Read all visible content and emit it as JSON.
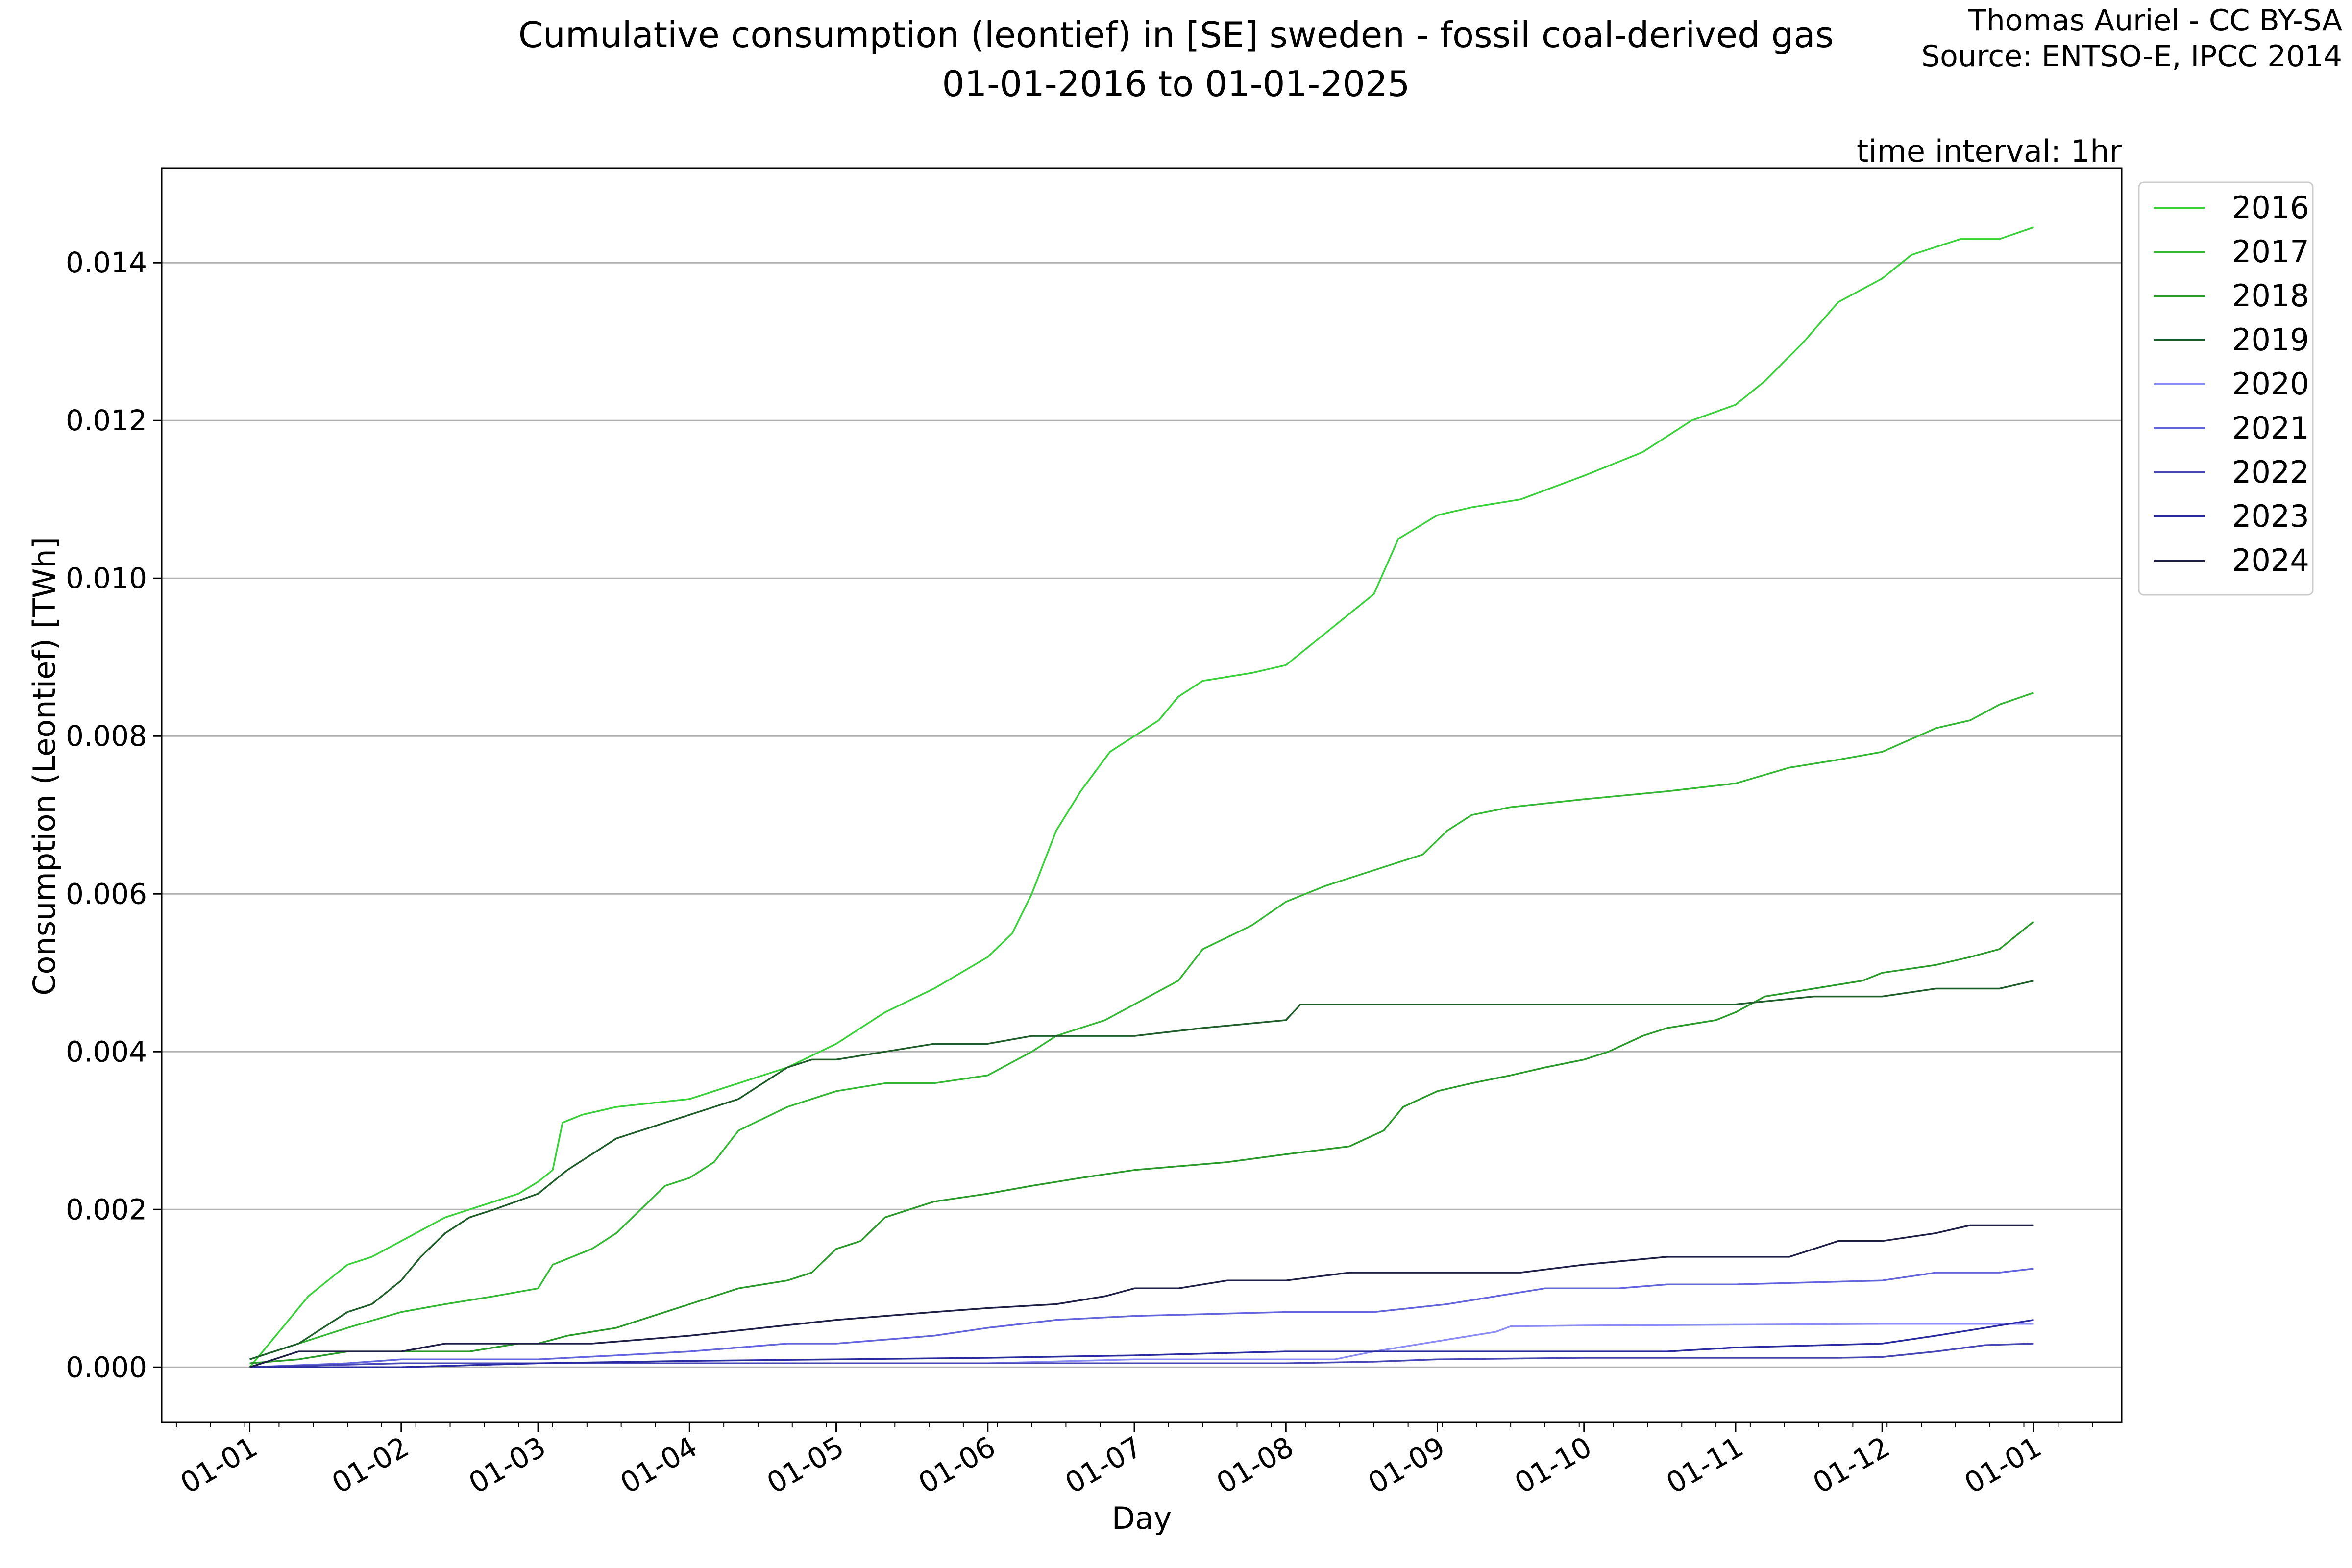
{
  "chart_data": {
    "type": "line",
    "title": "Cumulative consumption (leontief) in [SE] sweden - fossil coal-derived gas",
    "subtitle": "01-01-2016 to 01-01-2025",
    "credit_line1": "Thomas Auriel - CC BY-SA",
    "credit_line2": "Source: ENTSO-E, IPCC 2014",
    "annotation": "time interval: 1hr",
    "xlabel": "Day",
    "ylabel": "Consumption (Leontief) [TWh]",
    "x_ticks": [
      "01-01",
      "01-02",
      "01-03",
      "01-04",
      "01-05",
      "01-06",
      "01-07",
      "01-08",
      "01-09",
      "01-10",
      "01-11",
      "01-12",
      "01-01"
    ],
    "x_tick_days": [
      0,
      31,
      59,
      90,
      120,
      151,
      181,
      212,
      243,
      273,
      304,
      334,
      365
    ],
    "xlim": [
      -18,
      383
    ],
    "ylim": [
      -0.0007,
      0.0152
    ],
    "y_ticks": [
      0.0,
      0.002,
      0.004,
      0.006,
      0.008,
      0.01,
      0.012,
      0.014
    ],
    "y_tick_labels": [
      "0.000",
      "0.002",
      "0.004",
      "0.006",
      "0.008",
      "0.010",
      "0.012",
      "0.014"
    ],
    "grid": "horizontal",
    "legend_position": "upper-right-outside",
    "series": [
      {
        "name": "2016",
        "color": "#3ad13a",
        "points": [
          [
            0,
            0
          ],
          [
            4,
            0.0003
          ],
          [
            8,
            0.0006
          ],
          [
            12,
            0.0009
          ],
          [
            16,
            0.0011
          ],
          [
            20,
            0.0013
          ],
          [
            25,
            0.0014
          ],
          [
            31,
            0.0016
          ],
          [
            40,
            0.0019
          ],
          [
            45,
            0.002
          ],
          [
            50,
            0.0021
          ],
          [
            55,
            0.0022
          ],
          [
            59,
            0.00235
          ],
          [
            62,
            0.0025
          ],
          [
            64,
            0.0031
          ],
          [
            68,
            0.0032
          ],
          [
            75,
            0.0033
          ],
          [
            90,
            0.0034
          ],
          [
            100,
            0.0036
          ],
          [
            110,
            0.0038
          ],
          [
            120,
            0.0041
          ],
          [
            130,
            0.0045
          ],
          [
            140,
            0.0048
          ],
          [
            151,
            0.0052
          ],
          [
            156,
            0.0055
          ],
          [
            160,
            0.006
          ],
          [
            165,
            0.0068
          ],
          [
            170,
            0.0073
          ],
          [
            176,
            0.0078
          ],
          [
            181,
            0.008
          ],
          [
            186,
            0.0082
          ],
          [
            190,
            0.0085
          ],
          [
            195,
            0.0087
          ],
          [
            205,
            0.0088
          ],
          [
            212,
            0.0089
          ],
          [
            220,
            0.0093
          ],
          [
            230,
            0.0098
          ],
          [
            235,
            0.0105
          ],
          [
            243,
            0.0108
          ],
          [
            250,
            0.0109
          ],
          [
            260,
            0.011
          ],
          [
            273,
            0.0113
          ],
          [
            285,
            0.0116
          ],
          [
            295,
            0.012
          ],
          [
            304,
            0.0122
          ],
          [
            310,
            0.0125
          ],
          [
            318,
            0.013
          ],
          [
            325,
            0.0135
          ],
          [
            334,
            0.0138
          ],
          [
            340,
            0.0141
          ],
          [
            350,
            0.0143
          ],
          [
            358,
            0.0143
          ],
          [
            365,
            0.01445
          ]
        ]
      },
      {
        "name": "2017",
        "color": "#35b935",
        "points": [
          [
            0,
            0.0001
          ],
          [
            10,
            0.0003
          ],
          [
            20,
            0.0005
          ],
          [
            31,
            0.0007
          ],
          [
            40,
            0.0008
          ],
          [
            50,
            0.0009
          ],
          [
            59,
            0.001
          ],
          [
            62,
            0.0013
          ],
          [
            70,
            0.0015
          ],
          [
            75,
            0.0017
          ],
          [
            80,
            0.002
          ],
          [
            85,
            0.0023
          ],
          [
            90,
            0.0024
          ],
          [
            95,
            0.0026
          ],
          [
            100,
            0.003
          ],
          [
            110,
            0.0033
          ],
          [
            120,
            0.0035
          ],
          [
            130,
            0.0036
          ],
          [
            140,
            0.0036
          ],
          [
            151,
            0.0037
          ],
          [
            160,
            0.004
          ],
          [
            165,
            0.0042
          ],
          [
            175,
            0.0044
          ],
          [
            181,
            0.0046
          ],
          [
            190,
            0.0049
          ],
          [
            195,
            0.0053
          ],
          [
            205,
            0.0056
          ],
          [
            212,
            0.0059
          ],
          [
            220,
            0.0061
          ],
          [
            230,
            0.0063
          ],
          [
            240,
            0.0065
          ],
          [
            245,
            0.0068
          ],
          [
            250,
            0.007
          ],
          [
            258,
            0.0071
          ],
          [
            273,
            0.0072
          ],
          [
            290,
            0.0073
          ],
          [
            304,
            0.0074
          ],
          [
            315,
            0.0076
          ],
          [
            325,
            0.0077
          ],
          [
            334,
            0.0078
          ],
          [
            345,
            0.0081
          ],
          [
            352,
            0.0082
          ],
          [
            358,
            0.0084
          ],
          [
            365,
            0.00855
          ]
        ]
      },
      {
        "name": "2018",
        "color": "#2a9a2a",
        "points": [
          [
            0,
            5e-05
          ],
          [
            10,
            0.0001
          ],
          [
            20,
            0.0002
          ],
          [
            31,
            0.0002
          ],
          [
            45,
            0.0002
          ],
          [
            55,
            0.0003
          ],
          [
            59,
            0.0003
          ],
          [
            65,
            0.0004
          ],
          [
            75,
            0.0005
          ],
          [
            80,
            0.0006
          ],
          [
            90,
            0.0008
          ],
          [
            100,
            0.001
          ],
          [
            110,
            0.0011
          ],
          [
            115,
            0.0012
          ],
          [
            120,
            0.0015
          ],
          [
            125,
            0.0016
          ],
          [
            130,
            0.0019
          ],
          [
            140,
            0.0021
          ],
          [
            151,
            0.0022
          ],
          [
            160,
            0.0023
          ],
          [
            170,
            0.0024
          ],
          [
            181,
            0.0025
          ],
          [
            200,
            0.0026
          ],
          [
            212,
            0.0027
          ],
          [
            225,
            0.0028
          ],
          [
            232,
            0.003
          ],
          [
            236,
            0.0033
          ],
          [
            243,
            0.0035
          ],
          [
            250,
            0.0036
          ],
          [
            258,
            0.0037
          ],
          [
            265,
            0.0038
          ],
          [
            273,
            0.0039
          ],
          [
            278,
            0.004
          ],
          [
            285,
            0.0042
          ],
          [
            290,
            0.0043
          ],
          [
            300,
            0.0044
          ],
          [
            304,
            0.0045
          ],
          [
            310,
            0.0047
          ],
          [
            320,
            0.0048
          ],
          [
            330,
            0.0049
          ],
          [
            334,
            0.005
          ],
          [
            345,
            0.0051
          ],
          [
            352,
            0.0052
          ],
          [
            358,
            0.0053
          ],
          [
            365,
            0.00565
          ]
        ]
      },
      {
        "name": "2019",
        "color": "#1f5e2a",
        "points": [
          [
            0,
            0.0001
          ],
          [
            5,
            0.0002
          ],
          [
            10,
            0.0003
          ],
          [
            15,
            0.0005
          ],
          [
            20,
            0.0007
          ],
          [
            25,
            0.0008
          ],
          [
            31,
            0.0011
          ],
          [
            35,
            0.0014
          ],
          [
            40,
            0.0017
          ],
          [
            45,
            0.0019
          ],
          [
            50,
            0.002
          ],
          [
            59,
            0.0022
          ],
          [
            65,
            0.0025
          ],
          [
            70,
            0.0027
          ],
          [
            75,
            0.0029
          ],
          [
            80,
            0.003
          ],
          [
            85,
            0.0031
          ],
          [
            90,
            0.0032
          ],
          [
            95,
            0.0033
          ],
          [
            100,
            0.0034
          ],
          [
            105,
            0.0036
          ],
          [
            110,
            0.0038
          ],
          [
            115,
            0.0039
          ],
          [
            120,
            0.0039
          ],
          [
            130,
            0.004
          ],
          [
            140,
            0.0041
          ],
          [
            151,
            0.0041
          ],
          [
            160,
            0.0042
          ],
          [
            175,
            0.0042
          ],
          [
            181,
            0.0042
          ],
          [
            195,
            0.0043
          ],
          [
            212,
            0.0044
          ],
          [
            215,
            0.0046
          ],
          [
            230,
            0.0046
          ],
          [
            243,
            0.0046
          ],
          [
            260,
            0.0046
          ],
          [
            273,
            0.0046
          ],
          [
            290,
            0.0046
          ],
          [
            304,
            0.0046
          ],
          [
            320,
            0.0047
          ],
          [
            334,
            0.0047
          ],
          [
            345,
            0.0048
          ],
          [
            358,
            0.0048
          ],
          [
            365,
            0.0049
          ]
        ]
      },
      {
        "name": "2020",
        "color": "#8c8cf5",
        "points": [
          [
            0,
            0
          ],
          [
            31,
            0
          ],
          [
            59,
            5e-05
          ],
          [
            90,
            5e-05
          ],
          [
            120,
            5e-05
          ],
          [
            151,
            5e-05
          ],
          [
            181,
            0.0001
          ],
          [
            212,
            0.0001
          ],
          [
            222,
            0.0001
          ],
          [
            230,
            0.0002
          ],
          [
            240,
            0.0003
          ],
          [
            250,
            0.0004
          ],
          [
            255,
            0.00045
          ],
          [
            258,
            0.00052
          ],
          [
            273,
            0.00053
          ],
          [
            304,
            0.00054
          ],
          [
            334,
            0.00055
          ],
          [
            350,
            0.00055
          ],
          [
            365,
            0.00055
          ]
        ]
      },
      {
        "name": "2021",
        "color": "#6464dc",
        "points": [
          [
            0,
            0
          ],
          [
            20,
            5e-05
          ],
          [
            31,
            0.0001
          ],
          [
            59,
            0.0001
          ],
          [
            75,
            0.00015
          ],
          [
            90,
            0.0002
          ],
          [
            110,
            0.0003
          ],
          [
            120,
            0.0003
          ],
          [
            140,
            0.0004
          ],
          [
            151,
            0.0005
          ],
          [
            165,
            0.0006
          ],
          [
            181,
            0.00065
          ],
          [
            212,
            0.0007
          ],
          [
            230,
            0.0007
          ],
          [
            245,
            0.0008
          ],
          [
            255,
            0.0009
          ],
          [
            265,
            0.001
          ],
          [
            280,
            0.001
          ],
          [
            290,
            0.00105
          ],
          [
            304,
            0.00105
          ],
          [
            334,
            0.0011
          ],
          [
            345,
            0.0012
          ],
          [
            358,
            0.0012
          ],
          [
            365,
            0.00125
          ]
        ]
      },
      {
        "name": "2022",
        "color": "#4646b4",
        "points": [
          [
            0,
            0
          ],
          [
            31,
            5e-05
          ],
          [
            59,
            5e-05
          ],
          [
            90,
            5e-05
          ],
          [
            120,
            5e-05
          ],
          [
            151,
            5e-05
          ],
          [
            181,
            5e-05
          ],
          [
            212,
            5e-05
          ],
          [
            230,
            7e-05
          ],
          [
            243,
            0.0001
          ],
          [
            273,
            0.00012
          ],
          [
            304,
            0.00012
          ],
          [
            325,
            0.00012
          ],
          [
            334,
            0.00013
          ],
          [
            345,
            0.0002
          ],
          [
            355,
            0.00028
          ],
          [
            365,
            0.0003
          ]
        ]
      },
      {
        "name": "2023",
        "color": "#2a2aa0",
        "points": [
          [
            0,
            0
          ],
          [
            31,
            0
          ],
          [
            59,
            5e-05
          ],
          [
            90,
            8e-05
          ],
          [
            120,
            0.0001
          ],
          [
            151,
            0.00012
          ],
          [
            181,
            0.00015
          ],
          [
            212,
            0.0002
          ],
          [
            243,
            0.0002
          ],
          [
            273,
            0.0002
          ],
          [
            290,
            0.0002
          ],
          [
            304,
            0.00025
          ],
          [
            334,
            0.0003
          ],
          [
            345,
            0.0004
          ],
          [
            355,
            0.0005
          ],
          [
            365,
            0.0006
          ]
        ]
      },
      {
        "name": "2024",
        "color": "#1e1e46",
        "points": [
          [
            0,
            0
          ],
          [
            10,
            0.0002
          ],
          [
            31,
            0.0002
          ],
          [
            40,
            0.0003
          ],
          [
            59,
            0.0003
          ],
          [
            70,
            0.0003
          ],
          [
            90,
            0.0004
          ],
          [
            105,
            0.0005
          ],
          [
            120,
            0.0006
          ],
          [
            140,
            0.0007
          ],
          [
            151,
            0.00075
          ],
          [
            165,
            0.0008
          ],
          [
            175,
            0.0009
          ],
          [
            181,
            0.001
          ],
          [
            190,
            0.001
          ],
          [
            200,
            0.0011
          ],
          [
            212,
            0.0011
          ],
          [
            225,
            0.0012
          ],
          [
            243,
            0.0012
          ],
          [
            260,
            0.0012
          ],
          [
            273,
            0.0013
          ],
          [
            290,
            0.0014
          ],
          [
            304,
            0.0014
          ],
          [
            315,
            0.0014
          ],
          [
            320,
            0.0015
          ],
          [
            325,
            0.0016
          ],
          [
            334,
            0.0016
          ],
          [
            345,
            0.0017
          ],
          [
            352,
            0.0018
          ],
          [
            365,
            0.0018
          ]
        ]
      }
    ]
  }
}
